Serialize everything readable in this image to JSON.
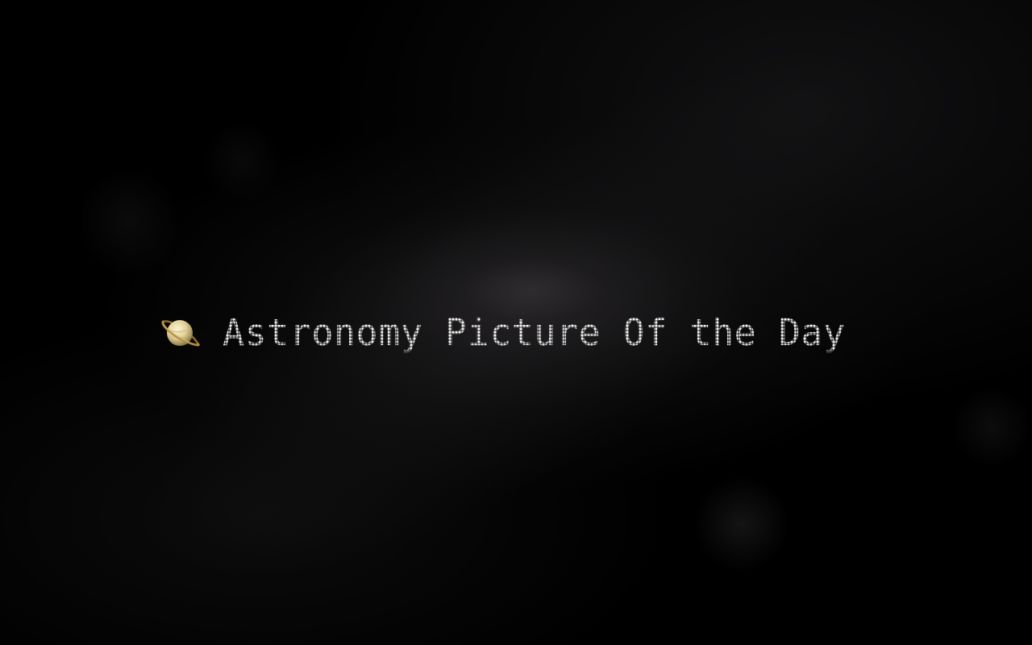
{
  "page": {
    "title": "Astronomy Picture Of the Day",
    "icon": "ringed-planet-icon",
    "colors": {
      "background": "#000000",
      "text": "#e8e8e8",
      "planet_body": "#e6d7a8",
      "planet_ring": "#9c7a36"
    }
  }
}
